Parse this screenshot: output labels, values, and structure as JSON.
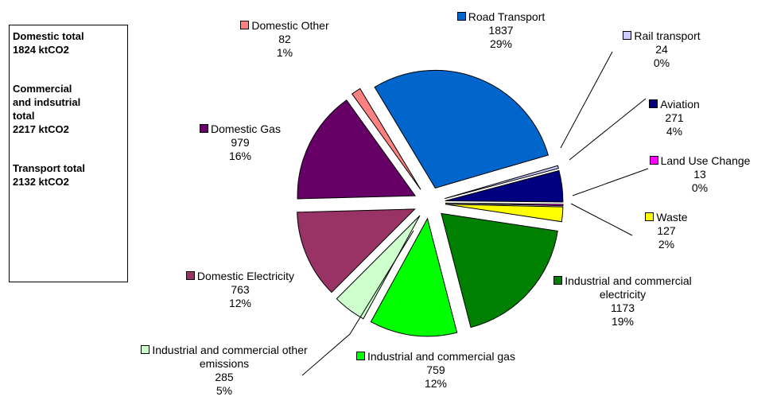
{
  "chart_data": {
    "type": "pie",
    "categories": [
      "Road Transport",
      "Rail transport",
      "Aviation",
      "Land Use Change",
      "Waste",
      "Industrial and commercial electricity",
      "Industrial and commercial gas",
      "Industrial and commercial other emissions",
      "Domestic Electricity",
      "Domestic Gas",
      "Domestic Other"
    ],
    "values": [
      1837,
      24,
      271,
      13,
      127,
      1173,
      759,
      285,
      763,
      979,
      82
    ],
    "percent_labels": [
      "29%",
      "0%",
      "4%",
      "0%",
      "2%",
      "19%",
      "12%",
      "5%",
      "12%",
      "16%",
      "1%"
    ],
    "colors": [
      "#0066cc",
      "#ccccff",
      "#000080",
      "#ff00ff",
      "#ffff00",
      "#008000",
      "#00ff00",
      "#ccffcc",
      "#993366",
      "#660066",
      "#ff8080"
    ],
    "totals_box": [
      [
        "Domestic total",
        "1824 ktCO2"
      ],
      [
        "Commercial",
        "and indsutrial",
        "total",
        "2217 ktCO2"
      ],
      [
        "Transport total",
        "2132 ktCO2"
      ]
    ]
  }
}
